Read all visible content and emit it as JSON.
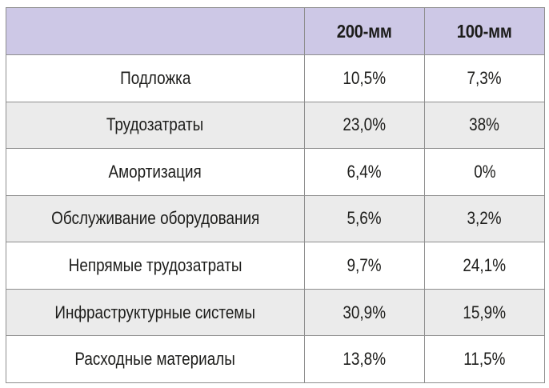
{
  "table": {
    "headers": [
      "",
      "200-мм",
      "100-мм"
    ],
    "rows": [
      {
        "label": "Подложка",
        "c200": "10,5%",
        "c100": "7,3%"
      },
      {
        "label": "Трудозатраты",
        "c200": "23,0%",
        "c100": "38%"
      },
      {
        "label": "Амортизация",
        "c200": "6,4%",
        "c100": "0%"
      },
      {
        "label": "Обслуживание оборудования",
        "c200": "5,6%",
        "c100": "3,2%"
      },
      {
        "label": "Непрямые трудозатраты",
        "c200": "9,7%",
        "c100": "24,1%"
      },
      {
        "label": "Инфраструктурные системы",
        "c200": "30,9%",
        "c100": "15,9%"
      },
      {
        "label": "Расходные материалы",
        "c200": "13,8%",
        "c100": "11,5%"
      }
    ]
  },
  "colors": {
    "header_bg": "#cdc8e6",
    "stripe_bg": "#ebebeb",
    "border": "#8e8e8e"
  }
}
